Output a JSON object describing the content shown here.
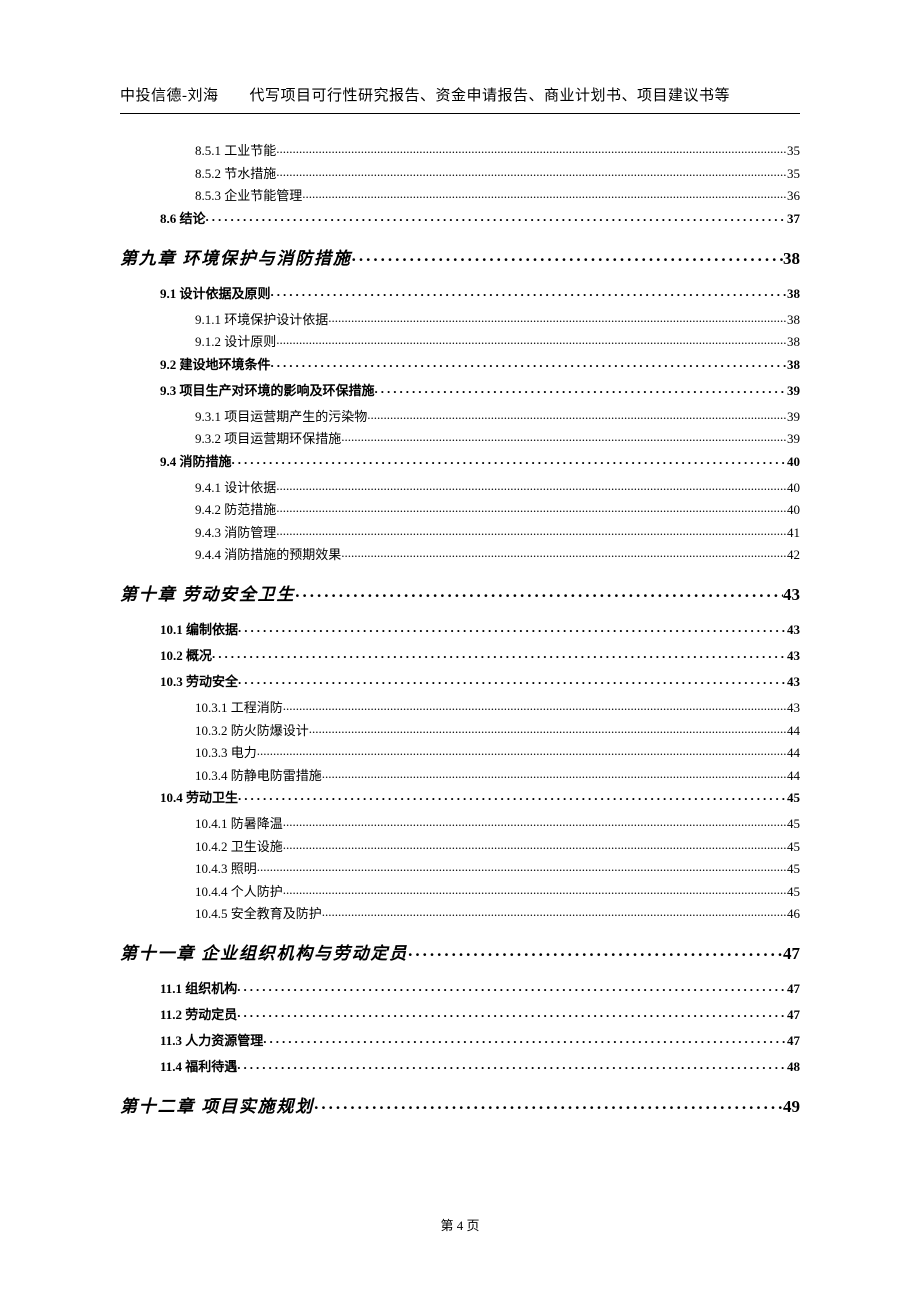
{
  "header_text": "中投信德-刘海　　代写项目可行性研究报告、资金申请报告、商业计划书、项目建议书等",
  "footer_text": "第 4 页",
  "toc_entries": [
    {
      "level": 3,
      "label": "8.5.1 工业节能",
      "page": "35"
    },
    {
      "level": 3,
      "label": "8.5.2 节水措施",
      "page": "35"
    },
    {
      "level": 3,
      "label": "8.5.3 企业节能管理",
      "page": "36"
    },
    {
      "level": 2,
      "label": "8.6 结论",
      "page": "37"
    },
    {
      "level": 1,
      "label": "第九章 环境保护与消防措施",
      "page": "38"
    },
    {
      "level": 2,
      "label": "9.1 设计依据及原则",
      "page": "38"
    },
    {
      "level": 3,
      "label": "9.1.1 环境保护设计依据",
      "page": "38"
    },
    {
      "level": 3,
      "label": "9.1.2 设计原则",
      "page": "38"
    },
    {
      "level": 2,
      "label": "9.2 建设地环境条件",
      "page": "38"
    },
    {
      "level": 2,
      "label": "9.3  项目生产对环境的影响及环保措施",
      "page": "39"
    },
    {
      "level": 3,
      "label": "9.3.1  项目运营期产生的污染物",
      "page": "39"
    },
    {
      "level": 3,
      "label": "9.3.2  项目运营期环保措施",
      "page": "39"
    },
    {
      "level": 2,
      "label": "9.4 消防措施",
      "page": "40"
    },
    {
      "level": 3,
      "label": "9.4.1 设计依据",
      "page": "40"
    },
    {
      "level": 3,
      "label": "9.4.2 防范措施",
      "page": "40"
    },
    {
      "level": 3,
      "label": "9.4.3 消防管理",
      "page": "41"
    },
    {
      "level": 3,
      "label": "9.4.4 消防措施的预期效果",
      "page": "42"
    },
    {
      "level": 1,
      "label": "第十章 劳动安全卫生",
      "page": "43"
    },
    {
      "level": 2,
      "label": "10.1 编制依据",
      "page": "43"
    },
    {
      "level": 2,
      "label": "10.2 概况",
      "page": "43"
    },
    {
      "level": 2,
      "label": "10.3 劳动安全",
      "page": "43"
    },
    {
      "level": 3,
      "label": "10.3.1 工程消防",
      "page": "43"
    },
    {
      "level": 3,
      "label": "10.3.2 防火防爆设计",
      "page": "44"
    },
    {
      "level": 3,
      "label": "10.3.3 电力",
      "page": "44"
    },
    {
      "level": 3,
      "label": "10.3.4 防静电防雷措施",
      "page": "44"
    },
    {
      "level": 2,
      "label": "10.4 劳动卫生",
      "page": "45"
    },
    {
      "level": 3,
      "label": "10.4.1 防暑降温",
      "page": "45"
    },
    {
      "level": 3,
      "label": "10.4.2 卫生设施",
      "page": "45"
    },
    {
      "level": 3,
      "label": "10.4.3 照明",
      "page": "45"
    },
    {
      "level": 3,
      "label": "10.4.4 个人防护",
      "page": "45"
    },
    {
      "level": 3,
      "label": "10.4.5 安全教育及防护",
      "page": "46"
    },
    {
      "level": 1,
      "label": "第十一章 企业组织机构与劳动定员",
      "page": "47"
    },
    {
      "level": 2,
      "label": "11.1 组织机构",
      "page": "47"
    },
    {
      "level": 2,
      "label": "11.2 劳动定员",
      "page": "47"
    },
    {
      "level": 2,
      "label": "11.3 人力资源管理",
      "page": "47"
    },
    {
      "level": 2,
      "label": "11.4 福利待遇",
      "page": "48"
    },
    {
      "level": 1,
      "label": "第十二章 项目实施规划",
      "page": "49"
    }
  ]
}
